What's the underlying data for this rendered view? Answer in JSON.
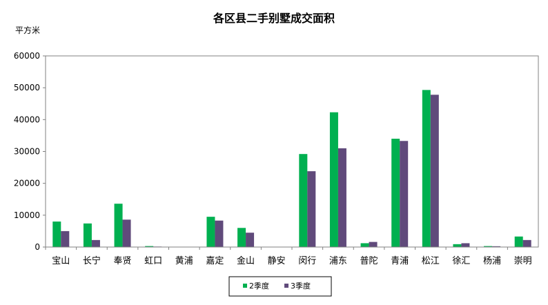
{
  "chart_data": {
    "type": "bar",
    "title": "各区县二手别墅成交面积",
    "ylabel": "平方米",
    "xlabel": "",
    "ylim": [
      0,
      60000
    ],
    "yticks": [
      0,
      10000,
      20000,
      30000,
      40000,
      50000,
      60000
    ],
    "grid": false,
    "legend_position": "bottom",
    "categories": [
      "宝山",
      "长宁",
      "奉贤",
      "虹口",
      "黄浦",
      "嘉定",
      "金山",
      "静安",
      "闵行",
      "浦东",
      "普陀",
      "青浦",
      "松江",
      "徐汇",
      "杨浦",
      "崇明"
    ],
    "series": [
      {
        "name": "2季度",
        "color": "#00b050",
        "values": [
          8000,
          7400,
          13600,
          300,
          0,
          9500,
          6000,
          0,
          29200,
          42300,
          1200,
          34000,
          49300,
          900,
          300,
          3300
        ]
      },
      {
        "name": "3季度",
        "color": "#604a7b",
        "values": [
          5000,
          2200,
          8600,
          150,
          0,
          8300,
          4500,
          0,
          23800,
          31000,
          1600,
          33300,
          47800,
          1200,
          250,
          2200
        ]
      }
    ]
  }
}
